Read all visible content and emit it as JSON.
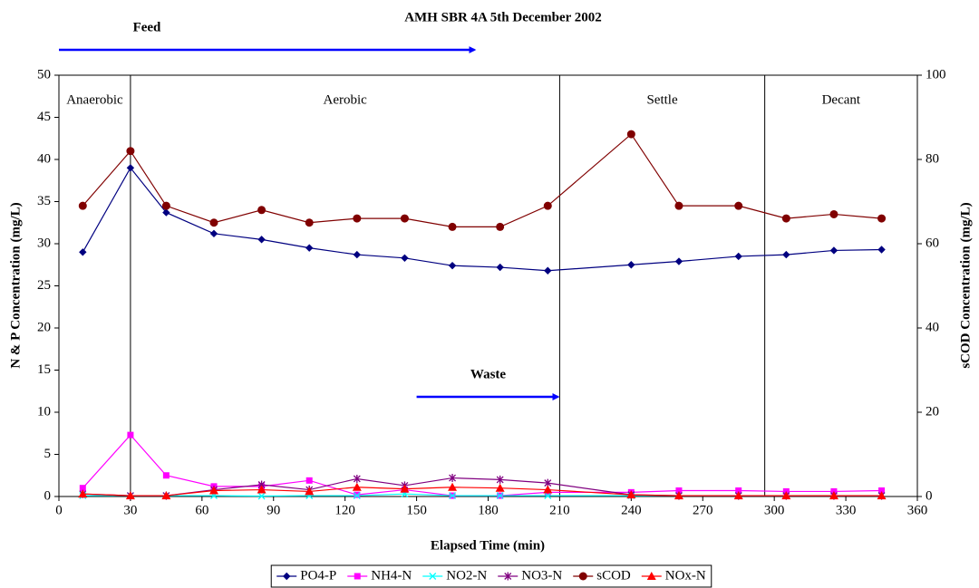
{
  "chart_data": {
    "type": "line",
    "title": "AMH SBR 4A 5th December 2002",
    "x_label": "Elapsed Time (min)",
    "y_label": "N & P Concentration (mg/L)",
    "y2_label": "sCOD Concentration (mg/L)",
    "x": [
      10,
      30,
      45,
      65,
      85,
      105,
      125,
      145,
      165,
      185,
      205,
      240,
      260,
      285,
      305,
      325,
      345
    ],
    "xlim": [
      0,
      360
    ],
    "xticks": [
      0,
      30,
      60,
      90,
      120,
      150,
      180,
      210,
      240,
      270,
      300,
      330,
      360
    ],
    "ylim": [
      0,
      50
    ],
    "yticks": [
      0,
      5,
      10,
      15,
      20,
      25,
      30,
      35,
      40,
      45,
      50
    ],
    "y2lim": [
      0,
      100
    ],
    "y2ticks": [
      0,
      20,
      40,
      60,
      80,
      100
    ],
    "grid": false,
    "legend": "bottom",
    "phases": [
      {
        "label": "Anaerobic",
        "start": 0,
        "end": 30
      },
      {
        "label": "Aerobic",
        "start": 30,
        "end": 210
      },
      {
        "label": "Settle",
        "start": 210,
        "end": 296
      },
      {
        "label": "Decant",
        "start": 296,
        "end": 360
      }
    ],
    "annotations": [
      {
        "text": "Feed",
        "x": [
          0,
          175
        ],
        "color": "#0000ff"
      },
      {
        "text": "Waste",
        "x": [
          150,
          210
        ],
        "color": "#0000ff"
      }
    ],
    "series": [
      {
        "name": "PO4-P",
        "color": "#000080",
        "marker": "diamond",
        "values": [
          29,
          39,
          33.7,
          31.2,
          30.5,
          29.5,
          28.7,
          28.3,
          27.4,
          27.2,
          26.8,
          27.5,
          27.9,
          28.5,
          28.7,
          29.2,
          29.3
        ]
      },
      {
        "name": "NH4-N",
        "color": "#ff00ff",
        "marker": "square",
        "values": [
          1.0,
          7.3,
          2.5,
          1.2,
          1.2,
          1.9,
          0.2,
          0.8,
          0.1,
          0.1,
          0.5,
          0.5,
          0.7,
          0.7,
          0.6,
          0.6,
          0.7
        ]
      },
      {
        "name": "NO2-N",
        "color": "#00ffff",
        "marker": "x",
        "values": [
          0.1,
          0.1,
          0.1,
          0.1,
          0.05,
          0.1,
          0.1,
          0.3,
          0.1,
          0.1,
          0.1,
          0.1,
          0.1,
          0.1,
          0.1,
          0.1,
          0.1
        ]
      },
      {
        "name": "NO3-N",
        "color": "#800080",
        "marker": "star",
        "values": [
          0.3,
          0.1,
          0.1,
          0.8,
          1.4,
          0.8,
          2.1,
          1.3,
          2.2,
          2.0,
          1.6,
          0.2,
          0.1,
          0.1,
          0.1,
          0.1,
          0.1
        ]
      },
      {
        "name": "sCOD",
        "color": "#800000",
        "marker": "circle",
        "axis": "y2",
        "values": [
          69,
          82,
          69,
          65,
          68,
          65,
          66,
          66,
          64,
          64,
          69,
          86,
          69,
          69,
          66,
          67,
          66
        ]
      },
      {
        "name": "NOx-N",
        "color": "#ff0000",
        "marker": "triangle",
        "values": [
          0.3,
          0.1,
          0.1,
          0.7,
          0.8,
          0.6,
          1.1,
          0.9,
          1.1,
          1.0,
          0.8,
          0.2,
          0.1,
          0.1,
          0.1,
          0.1,
          0.1
        ]
      }
    ]
  }
}
